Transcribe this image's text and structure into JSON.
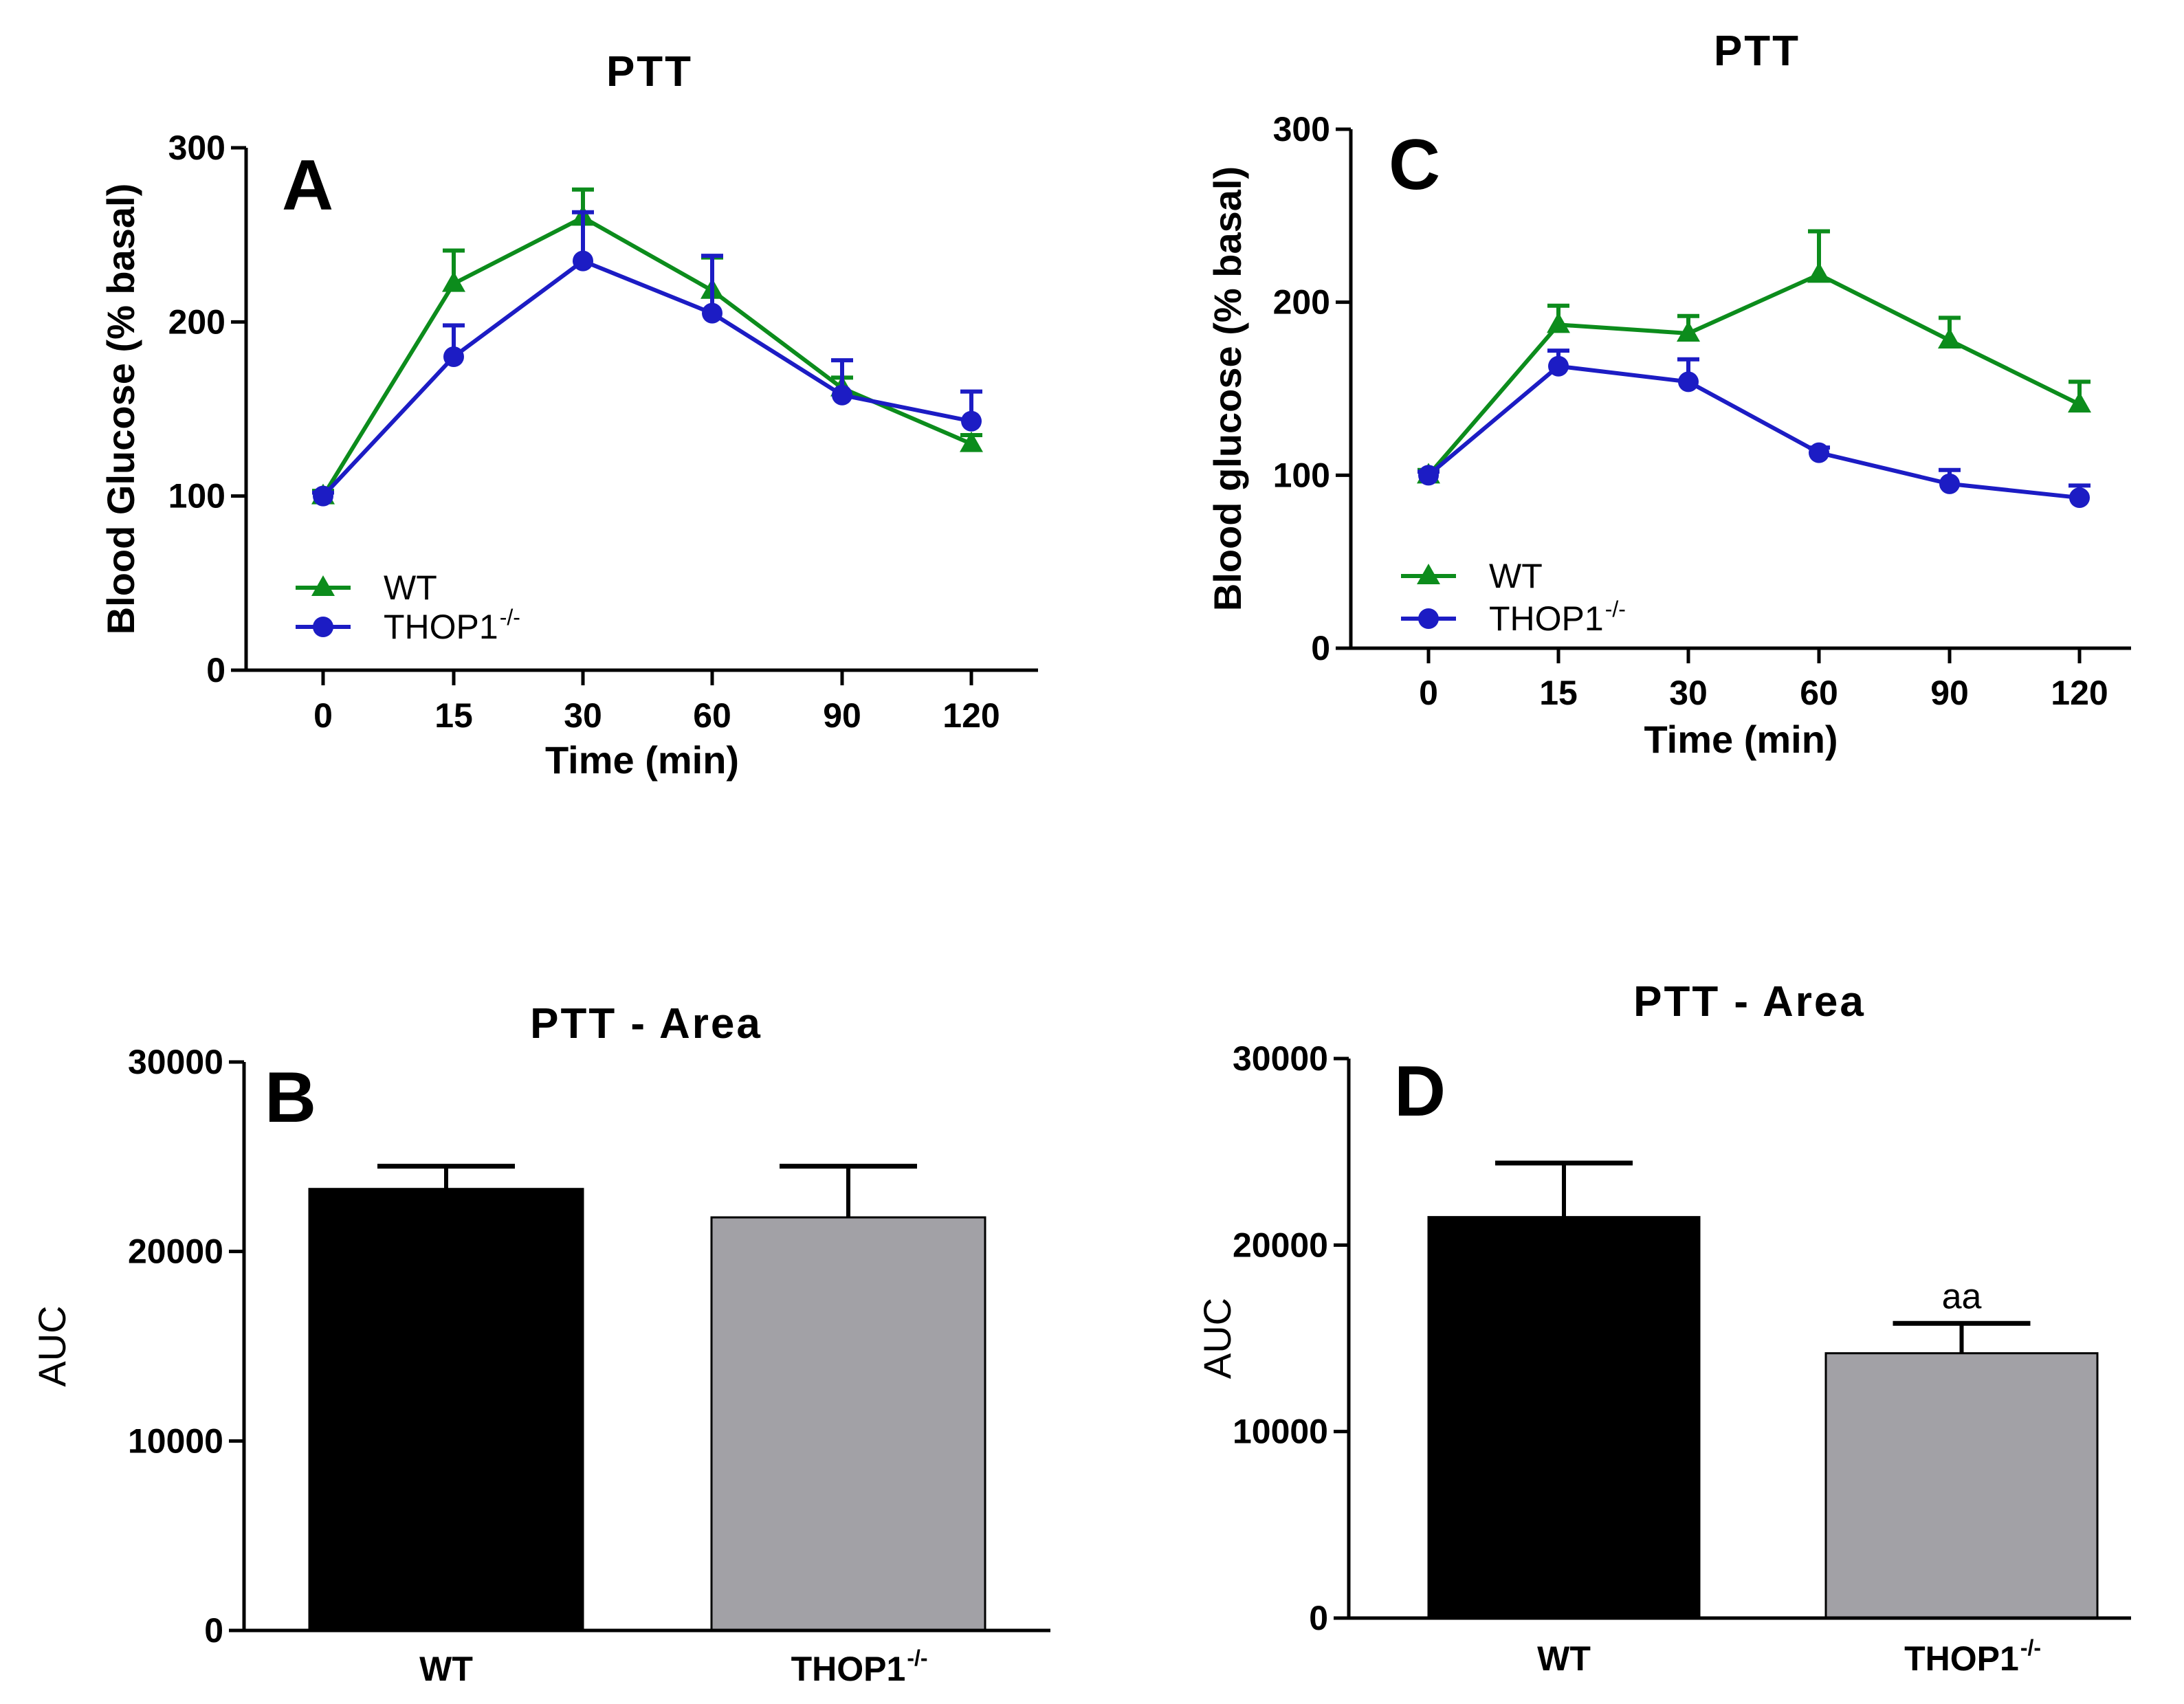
{
  "colors": {
    "wt": "#0c8c1c",
    "thop": "#1c1cc4",
    "bar_wt": "#000000",
    "bar_thop": "#a2a1a6"
  },
  "chart_data": [
    {
      "id": "A",
      "type": "line",
      "panel_label": "A",
      "title": "PTT",
      "xlabel": "Time (min)",
      "ylabel": "Blood Glucose (% basal)",
      "categories": [
        "0",
        "15",
        "30",
        "60",
        "90",
        "120"
      ],
      "ylim": [
        0,
        300
      ],
      "yticks": [
        "0",
        "100",
        "200",
        "300"
      ],
      "legend": {
        "placement": "bottom-left",
        "entries": [
          "WT",
          "THOP1"
        ],
        "superscript": "-/-"
      },
      "series": [
        {
          "name": "WT",
          "marker": "triangle",
          "values": [
            100,
            222,
            260,
            218,
            162,
            130
          ],
          "errors": [
            3,
            19,
            16,
            19,
            6,
            5
          ]
        },
        {
          "name": "THOP1-/-",
          "marker": "circle",
          "values": [
            100,
            180,
            235,
            205,
            158,
            143
          ],
          "errors": [
            2,
            18,
            28,
            33,
            20,
            17
          ]
        }
      ]
    },
    {
      "id": "B",
      "type": "bar",
      "panel_label": "B",
      "title": "PTT - Area",
      "ylabel": "AUC",
      "categories": [
        "WT",
        "THOP1"
      ],
      "superscript": "-/-",
      "ylim": [
        0,
        30000
      ],
      "yticks": [
        "0",
        "10000",
        "20000",
        "30000"
      ],
      "values": [
        23300,
        21800
      ],
      "errors": [
        1200,
        2700
      ]
    },
    {
      "id": "C",
      "type": "line",
      "panel_label": "C",
      "title": "PTT",
      "xlabel": "Time (min)",
      "ylabel": "Blood glucose (% basal)",
      "categories": [
        "0",
        "15",
        "30",
        "60",
        "90",
        "120"
      ],
      "ylim": [
        0,
        300
      ],
      "yticks": [
        "0",
        "100",
        "200",
        "300"
      ],
      "legend": {
        "placement": "bottom-left",
        "entries": [
          "WT",
          "THOP1"
        ],
        "superscript": "-/-"
      },
      "series": [
        {
          "name": "WT",
          "marker": "triangle",
          "values": [
            100,
            187,
            182,
            216,
            178,
            141
          ],
          "errors": [
            3,
            11,
            10,
            25,
            13,
            13
          ]
        },
        {
          "name": "THOP1-/-",
          "marker": "circle",
          "values": [
            100,
            163,
            154,
            113,
            95,
            87
          ],
          "errors": [
            2,
            9,
            13,
            3,
            8,
            7
          ]
        }
      ]
    },
    {
      "id": "D",
      "type": "bar",
      "panel_label": "D",
      "title": "PTT - Area",
      "ylabel": "AUC",
      "categories": [
        "WT",
        "THOP1"
      ],
      "superscript": "-/-",
      "ylim": [
        0,
        30000
      ],
      "yticks": [
        "0",
        "10000",
        "20000",
        "30000"
      ],
      "values": [
        21500,
        14200
      ],
      "errors": [
        2900,
        1600
      ],
      "annotation": "aa"
    }
  ]
}
